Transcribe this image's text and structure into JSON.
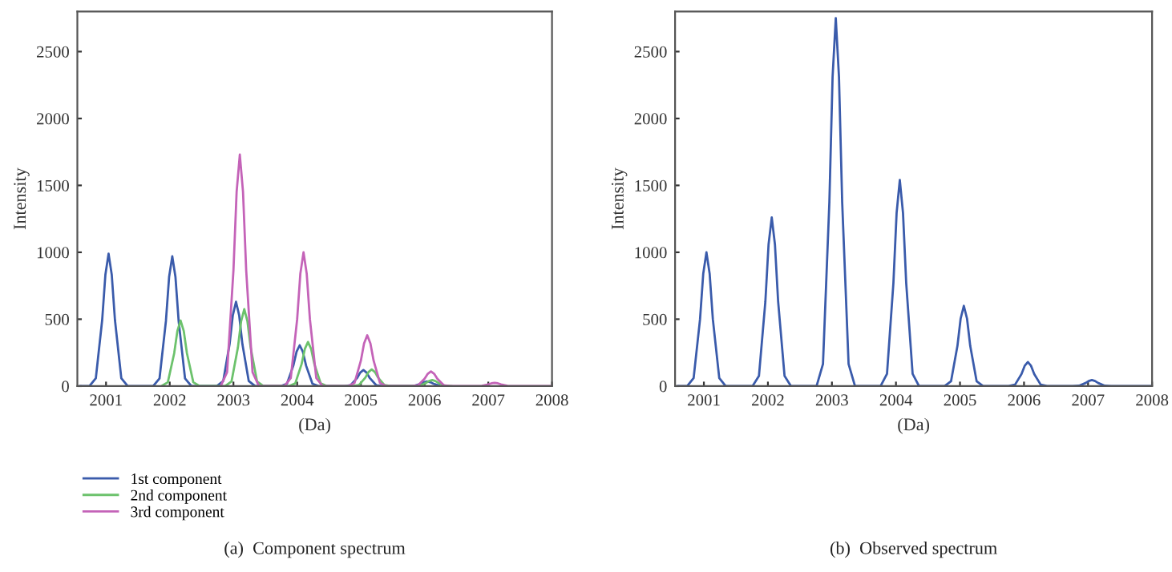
{
  "chart_data": [
    {
      "type": "line",
      "xlabel": "(Da)",
      "ylabel": "Intensity",
      "xlim": [
        2000.55,
        2008
      ],
      "ylim": [
        0,
        2800
      ],
      "xticks": [
        2001,
        2002,
        2003,
        2004,
        2005,
        2006,
        2007,
        2008
      ],
      "yticks": [
        0,
        500,
        1000,
        1500,
        2000,
        2500
      ],
      "grid": false,
      "legend": "bottom",
      "annotations": [
        "(a)  Component spectrum"
      ],
      "series": [
        {
          "name": "1st component",
          "color": "#3a5bab",
          "x": [
            2000.6,
            2000.74,
            2000.84,
            2000.94,
            2000.99,
            2001.04,
            2001.09,
            2001.14,
            2001.24,
            2001.34,
            2001.74,
            2001.84,
            2001.94,
            2001.99,
            2002.04,
            2002.09,
            2002.14,
            2002.24,
            2002.34,
            2002.74,
            2002.84,
            2002.94,
            2002.99,
            2003.04,
            2003.09,
            2003.14,
            2003.24,
            2003.34,
            2003.74,
            2003.84,
            2003.94,
            2003.99,
            2004.04,
            2004.09,
            2004.14,
            2004.24,
            2004.34,
            2004.74,
            2004.84,
            2004.94,
            2004.99,
            2005.04,
            2005.09,
            2005.14,
            2005.24,
            2005.34,
            2005.74,
            2005.84,
            2005.94,
            2005.99,
            2006.04,
            2006.09,
            2006.14,
            2006.24,
            2006.34
          ],
          "values": [
            0,
            0,
            59,
            495,
            832,
            990,
            832,
            495,
            59,
            0,
            0,
            58,
            485,
            815,
            970,
            815,
            485,
            58,
            0,
            0,
            38,
            315,
            529,
            630,
            529,
            315,
            38,
            0,
            0,
            18,
            153,
            256,
            305,
            256,
            153,
            18,
            0,
            0,
            7,
            60,
            101,
            120,
            101,
            60,
            7,
            0,
            0,
            2,
            18,
            29,
            35,
            29,
            18,
            2,
            0
          ]
        },
        {
          "name": "2nd component",
          "color": "#6cc26c",
          "x": [
            2001.87,
            2001.97,
            2002.07,
            2002.12,
            2002.17,
            2002.22,
            2002.27,
            2002.37,
            2002.47,
            2002.87,
            2002.97,
            2003.07,
            2003.12,
            2003.17,
            2003.22,
            2003.27,
            2003.37,
            2003.47,
            2003.87,
            2003.97,
            2004.07,
            2004.12,
            2004.17,
            2004.22,
            2004.27,
            2004.37,
            2004.47,
            2004.87,
            2004.97,
            2005.07,
            2005.12,
            2005.17,
            2005.22,
            2005.27,
            2005.37,
            2005.47,
            2005.82,
            2005.92,
            2006.02,
            2006.07,
            2006.12,
            2006.17,
            2006.22,
            2006.32,
            2006.42
          ],
          "values": [
            0,
            29,
            245,
            412,
            490,
            412,
            245,
            29,
            0,
            0,
            35,
            288,
            483,
            575,
            483,
            288,
            35,
            0,
            0,
            20,
            165,
            277,
            330,
            277,
            165,
            20,
            0,
            0,
            8,
            63,
            105,
            125,
            105,
            63,
            8,
            0,
            0,
            3,
            23,
            38,
            45,
            38,
            23,
            3,
            0
          ]
        },
        {
          "name": "3rd component",
          "color": "#c463b8",
          "x": [
            2002.8,
            2002.9,
            2003.0,
            2003.05,
            2003.1,
            2003.15,
            2003.2,
            2003.3,
            2003.4,
            2003.8,
            2003.9,
            2004.0,
            2004.05,
            2004.1,
            2004.15,
            2004.2,
            2004.3,
            2004.4,
            2004.8,
            2004.9,
            2005.0,
            2005.05,
            2005.1,
            2005.15,
            2005.2,
            2005.3,
            2005.4,
            2005.8,
            2005.9,
            2006.0,
            2006.05,
            2006.1,
            2006.15,
            2006.2,
            2006.3,
            2006.4,
            2006.8,
            2006.9,
            2007.0,
            2007.05,
            2007.1,
            2007.15,
            2007.2,
            2007.3,
            2007.4,
            2008
          ],
          "values": [
            0,
            104,
            865,
            1453,
            1730,
            1453,
            865,
            104,
            0,
            0,
            60,
            500,
            840,
            1000,
            840,
            500,
            60,
            0,
            0,
            23,
            190,
            319,
            380,
            319,
            190,
            23,
            0,
            0,
            7,
            55,
            92,
            110,
            92,
            55,
            7,
            0,
            0,
            2,
            13,
            21,
            25,
            21,
            13,
            2,
            0,
            0
          ]
        }
      ]
    },
    {
      "type": "line",
      "xlabel": "(Da)",
      "ylabel": "Intensity",
      "xlim": [
        2000.55,
        2008
      ],
      "ylim": [
        0,
        2800
      ],
      "xticks": [
        2001,
        2002,
        2003,
        2004,
        2005,
        2006,
        2007,
        2008
      ],
      "yticks": [
        0,
        500,
        1000,
        1500,
        2000,
        2500
      ],
      "grid": false,
      "annotations": [
        "(b)  Observed spectrum"
      ],
      "series": [
        {
          "color": "#3a5bab",
          "x": [
            2000.6,
            2000.74,
            2000.84,
            2000.94,
            2000.99,
            2001.04,
            2001.09,
            2001.14,
            2001.24,
            2001.34,
            2001.76,
            2001.86,
            2001.96,
            2002.01,
            2002.06,
            2002.11,
            2002.16,
            2002.26,
            2002.36,
            2002.76,
            2002.86,
            2002.96,
            2003.01,
            2003.06,
            2003.11,
            2003.16,
            2003.26,
            2003.36,
            2003.76,
            2003.86,
            2003.96,
            2004.01,
            2004.06,
            2004.11,
            2004.16,
            2004.26,
            2004.36,
            2004.76,
            2004.86,
            2004.96,
            2005.01,
            2005.06,
            2005.11,
            2005.16,
            2005.26,
            2005.36,
            2005.76,
            2005.86,
            2005.96,
            2006.01,
            2006.06,
            2006.11,
            2006.16,
            2006.26,
            2006.36,
            2006.76,
            2006.86,
            2006.96,
            2007.01,
            2007.06,
            2007.11,
            2007.16,
            2007.26,
            2007.36,
            2008
          ],
          "values": [
            0,
            0,
            60,
            500,
            840,
            1000,
            840,
            500,
            60,
            0,
            0,
            76,
            630,
            1058,
            1260,
            1058,
            630,
            76,
            0,
            0,
            165,
            1375,
            2310,
            2750,
            2310,
            1375,
            165,
            0,
            0,
            92,
            770,
            1294,
            1540,
            1294,
            770,
            92,
            0,
            0,
            36,
            300,
            504,
            600,
            504,
            300,
            36,
            0,
            0,
            11,
            90,
            151,
            180,
            151,
            90,
            11,
            0,
            0,
            3,
            23,
            38,
            45,
            38,
            23,
            3,
            0,
            0
          ]
        }
      ]
    }
  ]
}
